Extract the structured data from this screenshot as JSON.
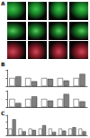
{
  "panels": [
    "A",
    "B",
    "C"
  ],
  "chart_data": [
    {
      "type": "bar",
      "categories": [
        null,
        null,
        null,
        null,
        null
      ],
      "series": [
        {
          "name": null,
          "color": "#ffffff",
          "values": [
            1.0,
            1.0,
            1.0,
            1.0,
            1.0
          ]
        },
        {
          "name": null,
          "color": "#808080",
          "values": [
            1.2,
            0.6,
            0.9,
            0.7,
            1.5
          ]
        }
      ],
      "ylim": [
        0,
        2
      ],
      "yticks": [
        0,
        1,
        2
      ],
      "grid": false,
      "tick_labels": false
    },
    {
      "type": "bar",
      "categories": [
        null,
        null,
        null,
        null,
        null
      ],
      "series": [
        {
          "name": null,
          "color": "#ffffff",
          "values": [
            1.0,
            1.0,
            1.0,
            1.0,
            1.0
          ]
        },
        {
          "name": null,
          "color": "#808080",
          "values": [
            0.5,
            1.3,
            0.8,
            1.6,
            0.7
          ]
        }
      ],
      "ylim": [
        0,
        2
      ],
      "yticks": [
        0,
        1,
        2
      ],
      "grid": false,
      "tick_labels": false
    },
    {
      "type": "bar",
      "categories": [
        null,
        null,
        null,
        null,
        null,
        null,
        null,
        null
      ],
      "series": [
        {
          "name": null,
          "color": "#ffffff",
          "values": [
            1.0,
            1.0,
            1.0,
            1.0,
            1.0,
            1.0,
            1.0,
            1.0
          ]
        },
        {
          "name": null,
          "color": "#808080",
          "values": [
            2.4,
            0.6,
            0.8,
            1.5,
            0.5,
            0.7,
            1.2,
            0.6
          ]
        }
      ],
      "ylim": [
        0,
        3
      ],
      "yticks": [
        0,
        1,
        2,
        3
      ],
      "grid": false,
      "tick_labels": false
    }
  ]
}
